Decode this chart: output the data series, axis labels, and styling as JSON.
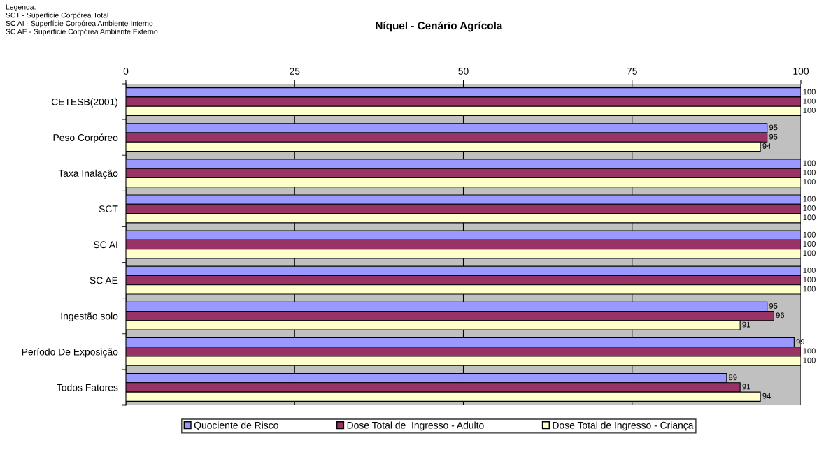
{
  "chart_data": {
    "type": "bar",
    "orientation": "horizontal",
    "title": "Níquel - Cenário Agrícola",
    "annotations": [
      "Legenda:\nSCT - Superficie Corpórea Total\nSC AI - Superfície Corpórea Ambiente Interno\nSC AE - Superficie Corpórea Ambiente Externo"
    ],
    "categories": [
      "CETESB(2001)",
      "Peso Corpóreo",
      "Taxa Inalação",
      "SCT",
      "SC AI",
      "SC AE",
      "Ingestão solo",
      "Período De Exposição",
      "Todos Fatores"
    ],
    "series": [
      {
        "name": "Quociente de Risco",
        "color": "#9999ff",
        "values": [
          100,
          95,
          100,
          100,
          100,
          100,
          95,
          99,
          89
        ]
      },
      {
        "name": "Dose Total de  Ingresso - Adulto",
        "color": "#993366",
        "values": [
          100,
          95,
          100,
          100,
          100,
          100,
          96,
          100,
          91
        ]
      },
      {
        "name": "Dose Total de Ingresso - Criança",
        "color": "#ffffcc",
        "values": [
          100,
          94,
          100,
          100,
          100,
          100,
          91,
          100,
          94
        ]
      }
    ],
    "xlim": [
      0,
      100
    ],
    "xticks": [
      0,
      25,
      50,
      75,
      100
    ],
    "grid": "x",
    "legend": "bottom",
    "data_labels": true
  }
}
